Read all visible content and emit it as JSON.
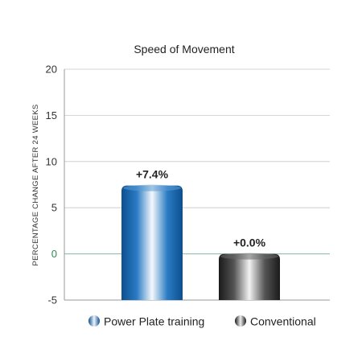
{
  "chart_data": {
    "type": "bar",
    "title": "Speed of Movement",
    "xlabel": "",
    "ylabel": "PERCENTAGE CHANGE AFTER 24 WEEKS",
    "ylim": [
      -5,
      20
    ],
    "yticks": [
      -5,
      0,
      5,
      10,
      15,
      20
    ],
    "grid": true,
    "legend_position": "bottom",
    "categories": [
      "Power Plate training",
      "Conventional"
    ],
    "values": [
      7.4,
      0.0
    ],
    "data_labels": [
      "+7.4%",
      "+0.0%"
    ],
    "series_colors": [
      "#1f6fb5",
      "#3a3a3a"
    ]
  }
}
